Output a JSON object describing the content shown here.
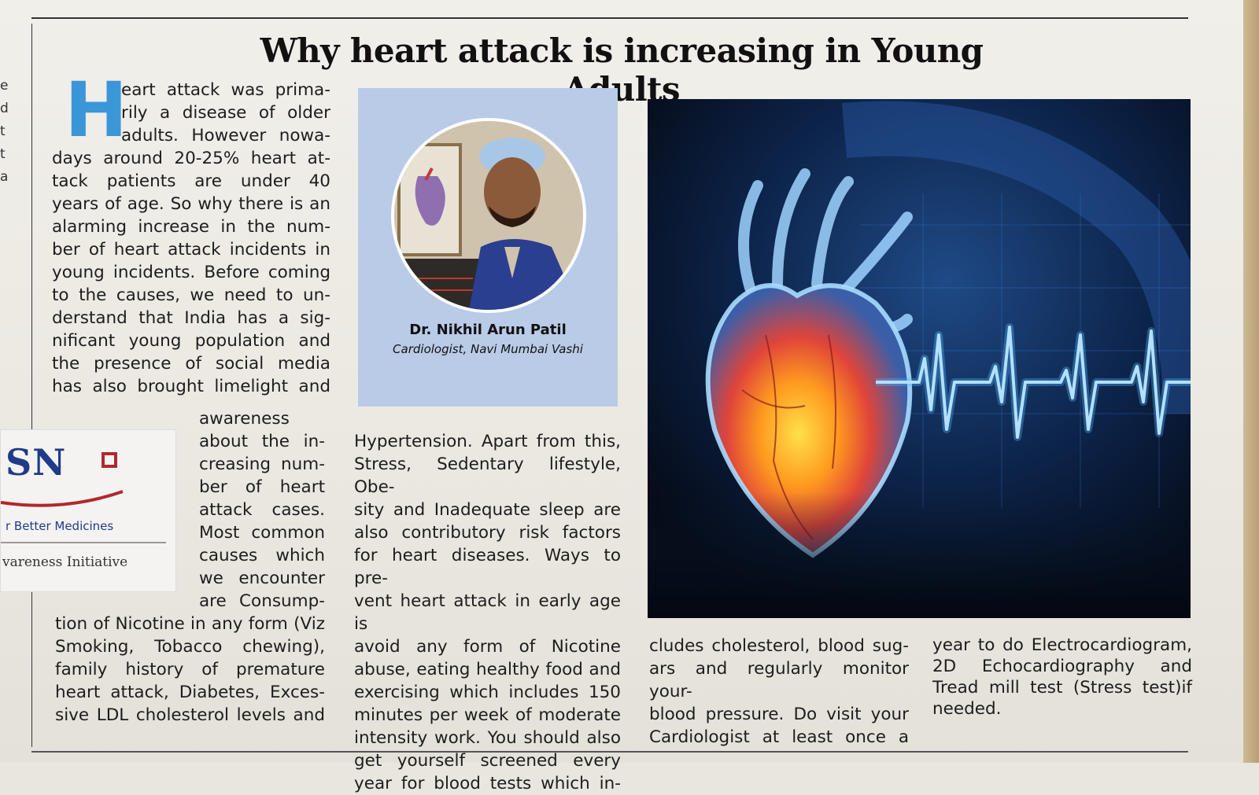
{
  "headline": "Why heart attack is increasing in Young Adults",
  "left_fragments": [
    "e",
    "d",
    "",
    "t",
    "t",
    "a"
  ],
  "dropcap": "H",
  "col1_top": [
    "eart attack was prima-",
    "rily a disease of older",
    "adults. However nowa-",
    "days around 20-25% heart at-",
    "tack patients are under 40",
    "years of age. So why there is an",
    "alarming increase in the num-",
    "ber of heart attack incidents in",
    "young incidents. Before coming",
    "to the causes, we need to un-",
    "derstand that India has a sig-",
    "nificant young population and",
    "the presence of social media",
    "has also brought limelight and"
  ],
  "col1_mid": [
    "awareness",
    "about the in-",
    "creasing num-",
    "ber of heart",
    "attack cases.",
    "Most common",
    "causes which",
    "we encounter",
    "are Consump-"
  ],
  "col1_bottom": [
    "tion of Nicotine in any form (Viz",
    "Smoking, Tobacco chewing),",
    "family history of premature",
    "heart attack, Diabetes, Exces-",
    "sive LDL cholesterol levels and"
  ],
  "doctor": {
    "name": "Dr. Nikhil Arun Patil",
    "title": "Cardiologist, Navi Mumbai Vashi"
  },
  "col2": [
    "Hypertension. Apart from this,",
    "Stress, Sedentary lifestyle, Obe-",
    "sity and Inadequate sleep are",
    "also contributory risk factors",
    "for heart diseases. Ways to pre-",
    "vent heart attack in early age is",
    "avoid any form of Nicotine",
    "abuse, eating healthy food and",
    "exercising which includes 150",
    "minutes per week of moderate",
    "intensity work. You should also",
    "get yourself screened every",
    "year for blood tests which in-"
  ],
  "col3": [
    "cludes cholesterol, blood sug-",
    "ars and regularly monitor your-",
    "blood pressure. Do visit your",
    "Cardiologist at least once a"
  ],
  "col4": [
    "year to do Electrocardiogram,",
    "2D Echocardiography and",
    "Tread mill test (Stress test)if",
    "needed."
  ],
  "ad": {
    "logo": "SN",
    "tagline": "r Better Medicines",
    "footer": "vareness Initiative"
  },
  "colors": {
    "dropcap": "#3b96d8",
    "photo_bg": "#b9cbe6",
    "ad_logo": "#1f3b8a",
    "ad_accent": "#b1282d"
  }
}
